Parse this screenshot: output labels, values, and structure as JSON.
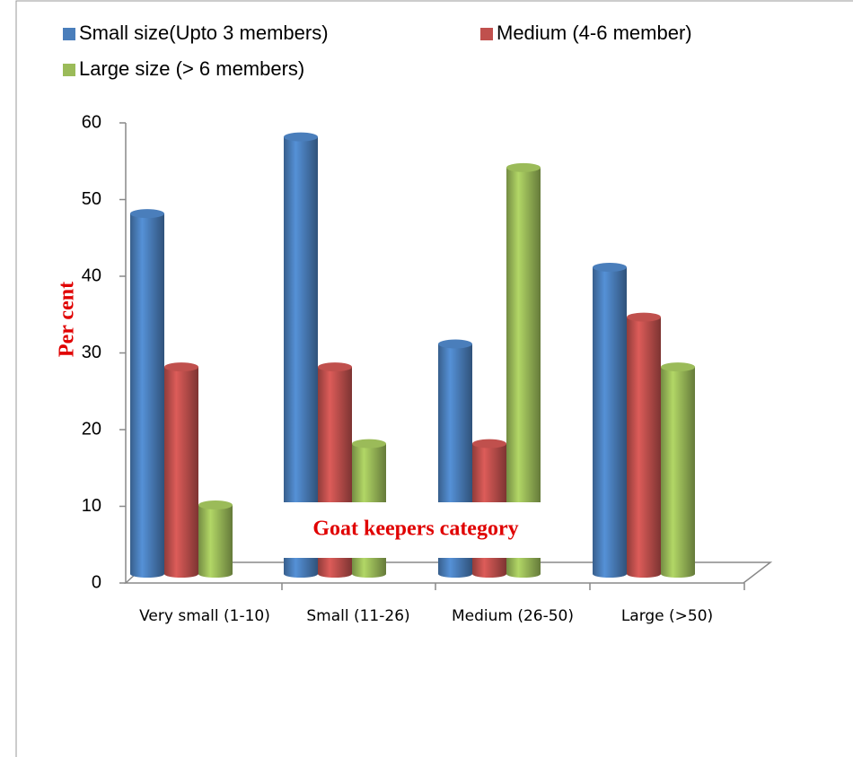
{
  "chart_data": {
    "type": "bar3d",
    "y_label": "Per cent",
    "annotation": "Goat keepers category",
    "categories": [
      "Very small (1-10)",
      "Small (11-26)",
      "Medium (26-50)",
      "Large (>50)"
    ],
    "series": [
      {
        "name": "Small size(Upto 3 members)",
        "color": "#4a7ebb",
        "values": [
          47,
          57,
          30,
          40
        ]
      },
      {
        "name": "Medium (4-6 member)",
        "color": "#c0504d",
        "values": [
          27,
          27,
          17,
          33.5
        ]
      },
      {
        "name": "Large size (> 6 members)",
        "color": "#9bbb59",
        "values": [
          9,
          17,
          53,
          27
        ]
      }
    ],
    "ylim": [
      0,
      60
    ],
    "yticks": [
      0,
      10,
      20,
      30,
      40,
      50,
      60
    ]
  }
}
